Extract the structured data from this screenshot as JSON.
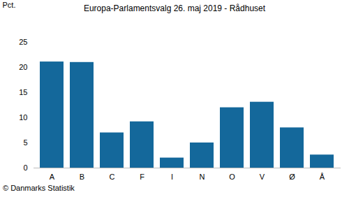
{
  "chart_data": {
    "type": "bar",
    "title": "Europa-Parlamentsvalg 26. maj 2019 - Rådhuset",
    "y_label": "Pct.",
    "source": "© Danmarks Statistik",
    "categories": [
      "A",
      "B",
      "C",
      "F",
      "I",
      "N",
      "O",
      "V",
      "Ø",
      "Å"
    ],
    "values": [
      21.1,
      21.0,
      7.0,
      9.2,
      2.0,
      5.0,
      12.0,
      13.1,
      8.0,
      2.6
    ],
    "color": "#14689b",
    "ylim": [
      0,
      25
    ],
    "yticks": [
      0,
      5,
      10,
      15,
      20,
      25
    ],
    "grid": false
  }
}
